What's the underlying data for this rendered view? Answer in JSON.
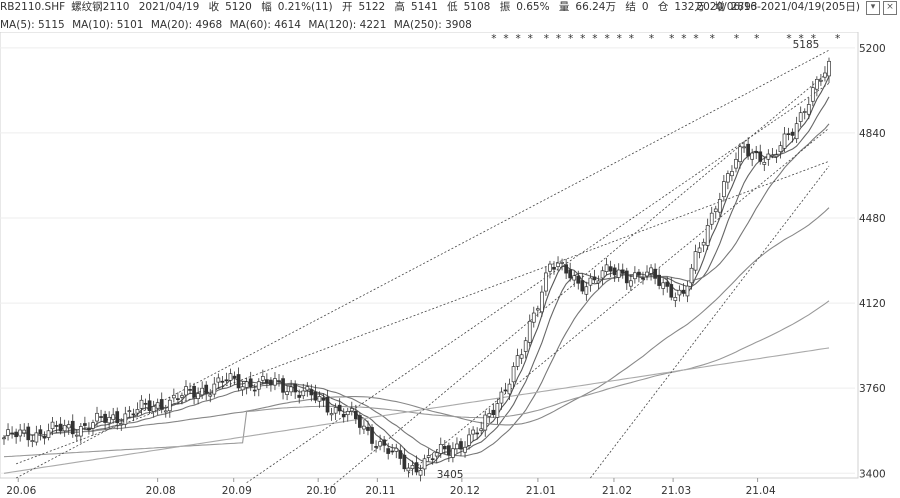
{
  "header": {
    "symbol": "RB2110.SHF",
    "name": "螺纹钢2110",
    "date": "2021/04/19",
    "close_label": "收",
    "close": "5120",
    "change_label": "幅",
    "change": "0.21%(11)",
    "open_label": "开",
    "open": "5122",
    "high_label": "高",
    "high": "5141",
    "low_label": "低",
    "low": "5108",
    "amp_label": "振",
    "amp": "0.65%",
    "volume_label": "量",
    "volume": "66.24万",
    "settle_label": "结",
    "settle": "0",
    "oi_label": "仓",
    "oi": "132万",
    "extra_label": "增",
    "extra": "2893",
    "range": "2020/06/16-2021/04/19(205日)"
  },
  "ma_legend": [
    {
      "label": "MA(5): 5115"
    },
    {
      "label": "MA(10): 5101"
    },
    {
      "label": "MA(20): 4968"
    },
    {
      "label": "MA(60): 4614"
    },
    {
      "label": "MA(120): 4221"
    },
    {
      "label": "MA(250): 3908"
    }
  ],
  "chart_data": {
    "type": "candlestick",
    "y_ticks": [
      3400,
      3760,
      4120,
      4480,
      4840,
      5200
    ],
    "ylim": [
      3380,
      5250
    ],
    "x_ticks": [
      "20.06",
      "20.08",
      "20.09",
      "20.10",
      "20.11",
      "20.12",
      "21.01",
      "21.02",
      "21.03",
      "21.04"
    ],
    "annotations": {
      "high": "5185",
      "low": "3405"
    },
    "series_anchor_points": [
      {
        "t": 0,
        "v": 3550
      },
      {
        "t": 20,
        "v": 3600
      },
      {
        "t": 40,
        "v": 3700
      },
      {
        "t": 55,
        "v": 3790
      },
      {
        "t": 70,
        "v": 3770
      },
      {
        "t": 85,
        "v": 3650
      },
      {
        "t": 100,
        "v": 3420
      },
      {
        "t": 110,
        "v": 3500
      },
      {
        "t": 118,
        "v": 3580
      },
      {
        "t": 128,
        "v": 3900
      },
      {
        "t": 135,
        "v": 4300
      },
      {
        "t": 142,
        "v": 4200
      },
      {
        "t": 150,
        "v": 4250
      },
      {
        "t": 160,
        "v": 4230
      },
      {
        "t": 168,
        "v": 4150
      },
      {
        "t": 176,
        "v": 4550
      },
      {
        "t": 183,
        "v": 4780
      },
      {
        "t": 190,
        "v": 4720
      },
      {
        "t": 198,
        "v": 4950
      },
      {
        "t": 204,
        "v": 5120
      }
    ]
  }
}
